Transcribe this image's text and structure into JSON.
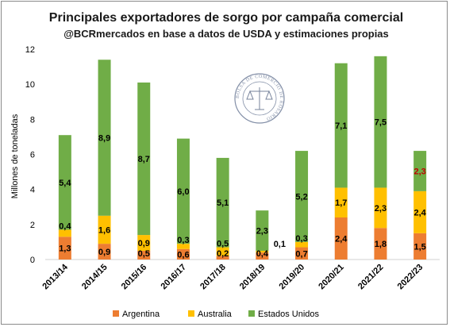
{
  "chart_data": {
    "type": "bar",
    "stacked": true,
    "title": "Principales exportadores de sorgo por campaña comercial",
    "subtitle": "@BCRmercados en base a datos de USDA y estimaciones propias",
    "xlabel": "",
    "ylabel": "Millones de toneladas",
    "ylim": [
      0,
      12
    ],
    "yticks": [
      0,
      2,
      4,
      6,
      8,
      10,
      12
    ],
    "grid": false,
    "legend_position": "bottom",
    "categories": [
      "2013/14",
      "2014/15",
      "2015/16",
      "2016/17",
      "2017/18",
      "2018/19",
      "2019/20",
      "2020/21",
      "2021/22",
      "2022/23"
    ],
    "series": [
      {
        "name": "Argentina",
        "color": "#ED7D31",
        "values": [
          1.3,
          0.9,
          0.5,
          0.6,
          0.2,
          0.4,
          0.7,
          2.4,
          1.8,
          1.5
        ],
        "labels": [
          "1,3",
          "0,9",
          "0,5",
          "0,6",
          "0,2",
          "0,4",
          "0,7",
          "2,4",
          "1,8",
          "1,5"
        ]
      },
      {
        "name": "Australia",
        "color": "#FFC000",
        "values": [
          0.4,
          1.6,
          0.9,
          0.3,
          0.5,
          0.1,
          0.3,
          1.7,
          2.3,
          2.4
        ],
        "labels": [
          "0,4",
          "1,6",
          "0,9",
          "0,3",
          "0,5",
          "0,1",
          "0,3",
          "1,7",
          "2,3",
          "2,4"
        ]
      },
      {
        "name": "Estados Unidos",
        "color": "#70AD47",
        "values": [
          5.4,
          8.9,
          8.7,
          6.0,
          5.1,
          2.3,
          5.2,
          7.1,
          7.5,
          2.3
        ],
        "labels": [
          "5,4",
          "8,9",
          "8,7",
          "6,0",
          "5,1",
          "2,3",
          "5,2",
          "7,1",
          "7,5",
          "2,3"
        ]
      }
    ],
    "highlight_label_color": "#C00000"
  },
  "watermark": {
    "text": "BOLSA DE COMERCIO DE ROSARIO",
    "color": "#4a5a7a"
  }
}
